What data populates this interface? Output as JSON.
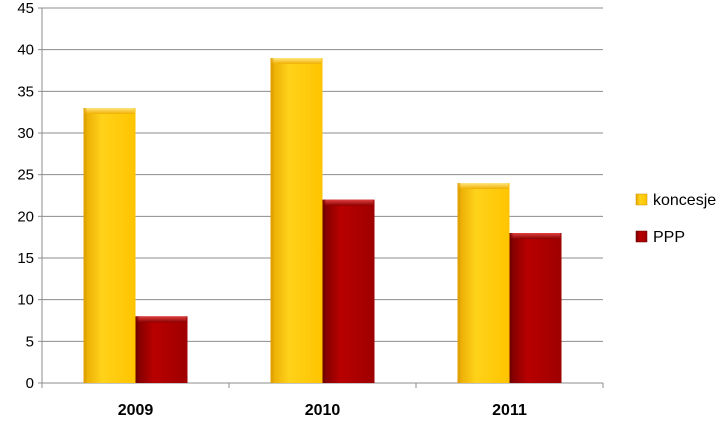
{
  "chart_data": {
    "type": "bar",
    "categories": [
      "2009",
      "2010",
      "2011"
    ],
    "series": [
      {
        "name": "koncesje",
        "values": [
          33,
          39,
          24
        ],
        "color": "#FFC800"
      },
      {
        "name": "PPP",
        "values": [
          8,
          22,
          18
        ],
        "color": "#A80000"
      }
    ],
    "ylim": [
      0,
      45
    ],
    "yticks": [
      "0",
      "5",
      "10",
      "15",
      "20",
      "25",
      "30",
      "35",
      "40",
      "45"
    ],
    "grid": true,
    "legend_position": "right"
  }
}
